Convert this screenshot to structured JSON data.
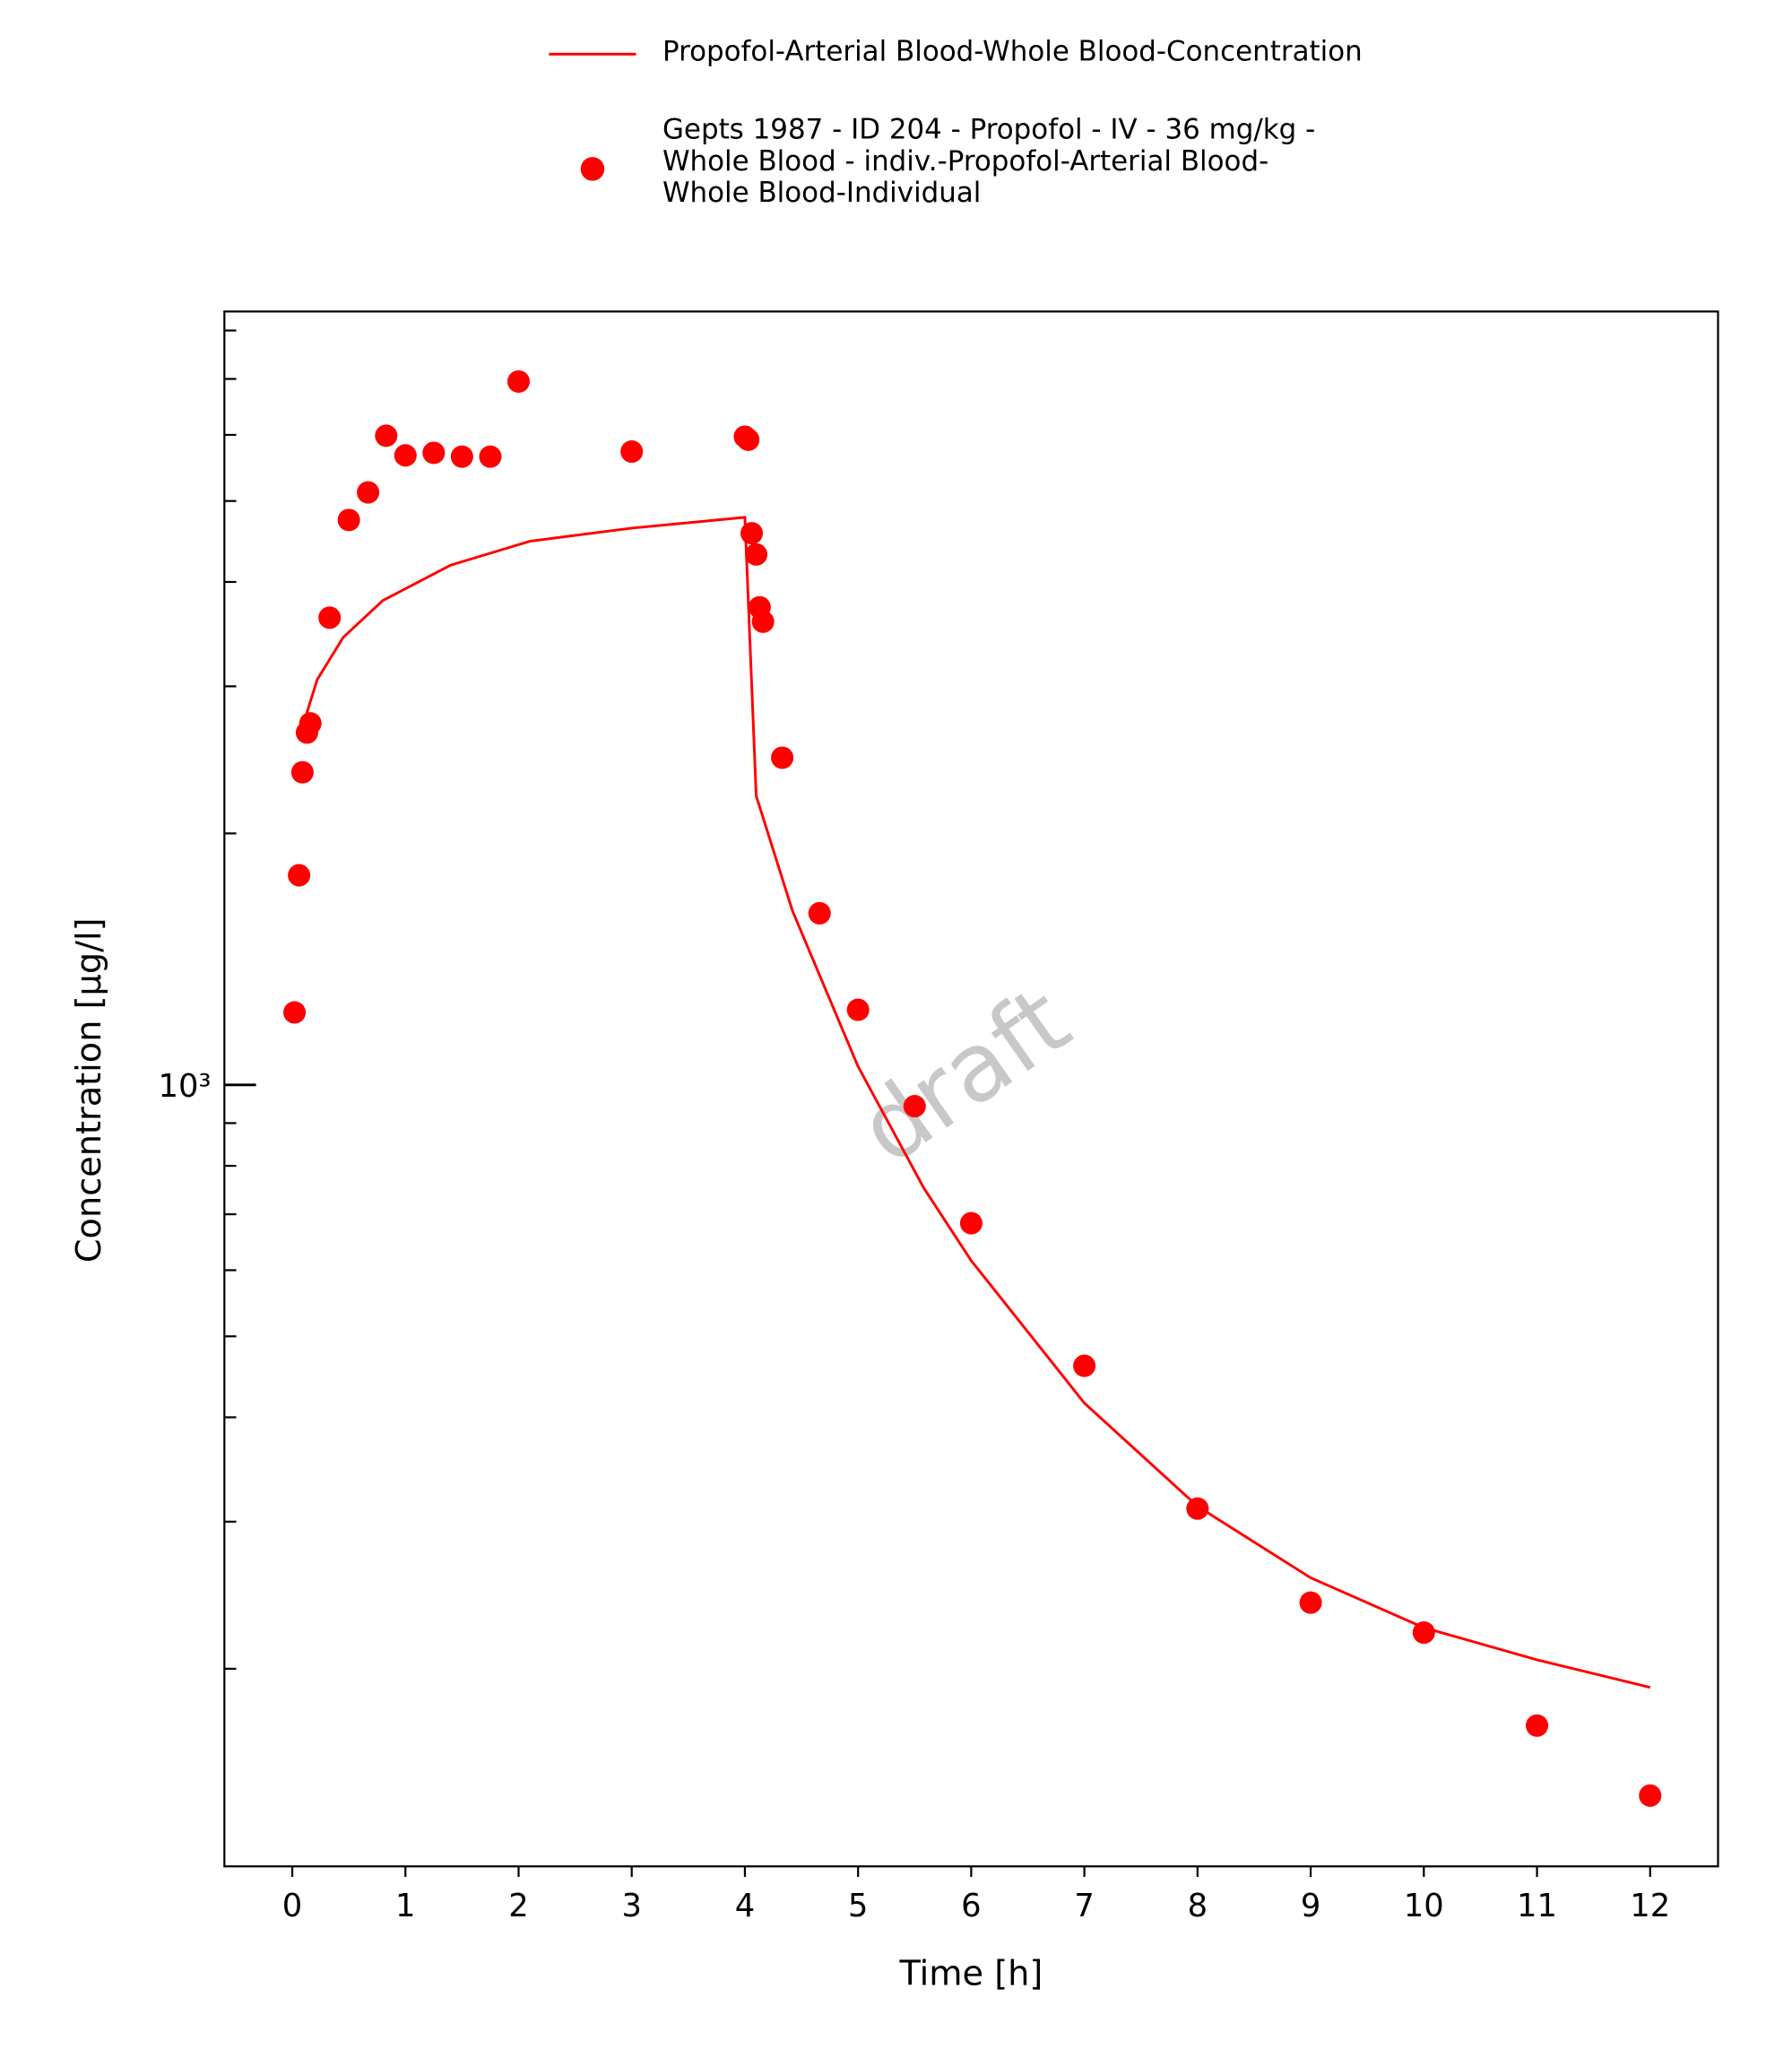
{
  "chart_data": {
    "type": "line_scatter",
    "xlabel": "Time [h]",
    "ylabel": "Concentration [µg/l]",
    "watermark": "draft",
    "log_y": true,
    "xlim": [
      -0.6,
      12.6
    ],
    "xticks": [
      0,
      1,
      2,
      3,
      4,
      5,
      6,
      7,
      8,
      9,
      10,
      11,
      12
    ],
    "ylim": [
      116,
      8430
    ],
    "yticks": [
      {
        "value": 1000,
        "label": "10³"
      }
    ],
    "yminorticks": [
      200,
      300,
      400,
      500,
      600,
      700,
      800,
      900,
      2000,
      3000,
      4000,
      5000,
      6000,
      7000,
      8000
    ],
    "series": [
      {
        "name": "Propofol-Arterial Blood-Whole Blood-Concentration",
        "kind": "line",
        "color": "#ff0000",
        "x": [
          0.1,
          0.22,
          0.45,
          0.8,
          1.4,
          2.1,
          3,
          4,
          4.1,
          4.42,
          5,
          5.58,
          6,
          7,
          8,
          9,
          10,
          11,
          12
        ],
        "values": [
          2709,
          3055,
          3433,
          3800,
          4190,
          4475,
          4640,
          4780,
          2218,
          1616,
          1052,
          753,
          616,
          416,
          313,
          257,
          224,
          205,
          190
        ]
      },
      {
        "name": "Gepts 1987 - ID 204 - Propofol - IV - 36 mg/kg - Whole Blood - indiv.-Propofol-Arterial Blood-Whole Blood-Individual",
        "kind": "scatter",
        "color": "#ff0000",
        "x": [
          0.02,
          0.06,
          0.09,
          0.13,
          0.16,
          0.33,
          0.5,
          0.67,
          0.83,
          1.0,
          1.25,
          1.5,
          1.75,
          2.0,
          3.0,
          4.0,
          4.03,
          4.06,
          4.1,
          4.13,
          4.16,
          4.33,
          4.66,
          5.0,
          5.5,
          6.0,
          7.0,
          8.0,
          9.0,
          10.0,
          11.0,
          12.0
        ],
        "values": [
          1221,
          1782,
          2367,
          2641,
          2709,
          3625,
          4745,
          5120,
          5986,
          5670,
          5710,
          5650,
          5650,
          6950,
          5730,
          5970,
          5920,
          4575,
          4315,
          3730,
          3585,
          2464,
          1605,
          1230,
          943,
          683,
          461,
          311,
          240,
          221,
          171,
          141
        ]
      }
    ]
  }
}
